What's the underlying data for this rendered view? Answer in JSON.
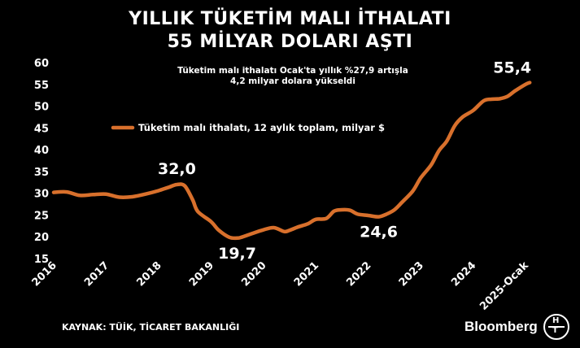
{
  "header": {
    "title_line1": "YILLIK TÜKETİM MALI İTHALATI",
    "title_line2": "55 MİLYAR DOLARI AŞTI",
    "subtitle_line1": "Tüketim malı ithalatı Ocak'ta yıllık %27,9 artışla",
    "subtitle_line2": "4,2 milyar dolara yükseldi"
  },
  "footer": {
    "source": "KAYNAK: TÜİK, TİCARET BAKANLIĞI",
    "brand": "Bloomberg",
    "logo_top": "H",
    "logo_bottom": "T"
  },
  "colors": {
    "line": "#d8702c",
    "background": "#000000",
    "text": "#ffffff"
  },
  "chart_data": {
    "type": "line",
    "x_tick_labels": [
      "2016",
      "2017",
      "2018",
      "2019",
      "2020",
      "2021",
      "2022",
      "2023",
      "2024",
      "2025-Ocak"
    ],
    "ylim": [
      15,
      60
    ],
    "y_ticks": [
      15,
      20,
      25,
      30,
      35,
      40,
      45,
      50,
      55,
      60
    ],
    "grid": false,
    "legend_position": "upper-left",
    "series": [
      {
        "name": "Tüketim malı ithalatı, 12 aylık toplam, milyar $",
        "x": [
          2016.0,
          2016.25,
          2016.5,
          2016.75,
          2017.0,
          2017.25,
          2017.5,
          2017.75,
          2018.0,
          2018.2,
          2018.35,
          2018.5,
          2018.65,
          2018.75,
          2019.0,
          2019.15,
          2019.35,
          2019.5,
          2019.58,
          2019.75,
          2020.0,
          2020.2,
          2020.4,
          2020.5,
          2020.65,
          2020.85,
          2021.0,
          2021.2,
          2021.35,
          2021.5,
          2021.65,
          2021.8,
          2022.0,
          2022.2,
          2022.35,
          2022.5,
          2022.65,
          2022.85,
          2023.0,
          2023.2,
          2023.35,
          2023.5,
          2023.65,
          2023.8,
          2024.0,
          2024.2,
          2024.35,
          2024.5,
          2024.65,
          2024.8,
          2025.0,
          2025.08
        ],
        "values": [
          30.2,
          30.3,
          29.5,
          29.7,
          29.8,
          29.1,
          29.2,
          29.8,
          30.6,
          31.4,
          32.0,
          31.7,
          28.5,
          25.8,
          23.5,
          21.5,
          19.9,
          19.7,
          19.9,
          20.6,
          21.6,
          22.1,
          21.2,
          21.5,
          22.2,
          23.0,
          24.0,
          24.2,
          25.9,
          26.2,
          26.1,
          25.2,
          24.9,
          24.6,
          25.2,
          26.2,
          28.0,
          30.5,
          33.5,
          36.5,
          39.8,
          42.0,
          45.5,
          47.5,
          49.0,
          51.2,
          51.6,
          51.7,
          52.2,
          53.5,
          55.0,
          55.4
        ]
      }
    ],
    "annotations": [
      {
        "label": "32,0",
        "x": 2018.35,
        "y": 32.0
      },
      {
        "label": "19,7",
        "x": 2019.5,
        "y": 19.7
      },
      {
        "label": "24,6",
        "x": 2022.2,
        "y": 24.6
      },
      {
        "label": "55,4",
        "x": 2025.08,
        "y": 55.4
      }
    ]
  }
}
